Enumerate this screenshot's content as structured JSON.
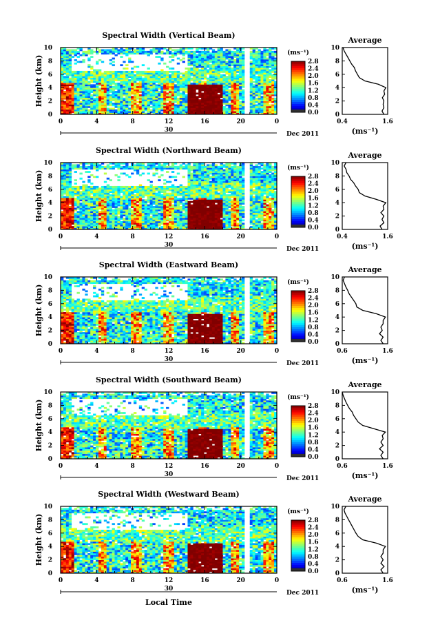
{
  "common": {
    "ylabel": "Height (km)",
    "unit": "(ms⁻¹)",
    "x_ticks": [
      "0",
      "4",
      "8",
      "12",
      "16",
      "20",
      "0"
    ],
    "y_ticks": [
      "0",
      "2",
      "4",
      "6",
      "8",
      "10"
    ],
    "day_label": "30",
    "date_label": "Dec 2011",
    "colorbar_ticks": [
      "0.0",
      "0.4",
      "0.8",
      "1.2",
      "1.6",
      "2.0",
      "2.4",
      "2.8"
    ],
    "avg_title": "Average",
    "avg_xlabel": "(ms⁻¹)",
    "xlabel": "Local Time",
    "ylim": [
      0,
      10
    ],
    "xlim": [
      0,
      24
    ],
    "colorbar_range": [
      0.0,
      2.8
    ]
  },
  "chart_data": [
    {
      "type": "heatmap",
      "title": "Spectral Width (Vertical Beam)",
      "avg_ticks": [
        "0.4",
        "1.6"
      ],
      "avg_xlim": [
        0.4,
        1.6
      ],
      "avg_profile": {
        "height_km": [
          0.0,
          0.5,
          1.0,
          1.5,
          2.0,
          2.5,
          3.0,
          3.5,
          4.0,
          4.5,
          5.0,
          5.5,
          6.0,
          6.5,
          7.0,
          7.5,
          8.0,
          8.5,
          9.0,
          9.5,
          10.0
        ],
        "width": [
          1.5,
          1.45,
          1.5,
          1.48,
          1.5,
          1.46,
          1.52,
          1.5,
          1.55,
          1.35,
          1.0,
          0.85,
          0.8,
          0.75,
          0.72,
          0.65,
          0.6,
          0.55,
          0.5,
          0.45,
          0.42
        ]
      }
    },
    {
      "type": "heatmap",
      "title": "Spectral Width (Northward Beam)",
      "avg_ticks": [
        "0.4",
        "1.6"
      ],
      "avg_xlim": [
        0.4,
        1.6
      ],
      "avg_profile": {
        "height_km": [
          0.0,
          0.5,
          1.0,
          1.5,
          2.0,
          2.5,
          3.0,
          3.5,
          4.0,
          4.5,
          5.0,
          5.5,
          6.0,
          6.5,
          7.0,
          7.5,
          8.0,
          8.5,
          9.0,
          9.5,
          10.0
        ],
        "width": [
          1.45,
          1.4,
          1.5,
          1.45,
          1.5,
          1.42,
          1.5,
          1.48,
          1.55,
          1.3,
          1.0,
          0.85,
          0.82,
          0.75,
          0.7,
          0.62,
          0.58,
          0.52,
          0.5,
          0.45,
          0.5
        ]
      }
    },
    {
      "type": "heatmap",
      "title": "Spectral Width (Eastward Beam)",
      "avg_ticks": [
        "0.6",
        "1.6"
      ],
      "avg_xlim": [
        0.6,
        1.6
      ],
      "avg_profile": {
        "height_km": [
          0.0,
          0.5,
          1.0,
          1.5,
          2.0,
          2.5,
          3.0,
          3.5,
          4.0,
          4.5,
          5.0,
          5.5,
          6.0,
          6.5,
          7.0,
          7.5,
          8.0,
          8.5,
          9.0,
          9.5,
          10.0
        ],
        "width": [
          1.5,
          1.45,
          1.5,
          1.42,
          1.48,
          1.45,
          1.5,
          1.5,
          1.55,
          1.35,
          1.05,
          0.92,
          0.9,
          0.85,
          0.8,
          0.75,
          0.72,
          0.68,
          0.65,
          0.62,
          0.65
        ]
      }
    },
    {
      "type": "heatmap",
      "title": "Spectral Width (Southward Beam)",
      "avg_ticks": [
        "0.6",
        "1.6"
      ],
      "avg_xlim": [
        0.6,
        1.6
      ],
      "avg_profile": {
        "height_km": [
          0.0,
          0.5,
          1.0,
          1.5,
          2.0,
          2.5,
          3.0,
          3.5,
          4.0,
          4.5,
          5.0,
          5.5,
          6.0,
          6.5,
          7.0,
          7.5,
          8.0,
          8.5,
          9.0,
          9.5,
          10.0
        ],
        "width": [
          1.5,
          1.45,
          1.5,
          1.42,
          1.5,
          1.45,
          1.5,
          1.48,
          1.55,
          1.3,
          1.05,
          0.95,
          0.9,
          0.85,
          0.82,
          0.76,
          0.72,
          0.68,
          0.65,
          0.62,
          0.6
        ]
      }
    },
    {
      "type": "heatmap",
      "title": "Spectral Width (Westward Beam)",
      "avg_ticks": [
        "0.6",
        "1.6"
      ],
      "avg_xlim": [
        0.6,
        1.6
      ],
      "avg_profile": {
        "height_km": [
          0.0,
          0.5,
          1.0,
          1.5,
          2.0,
          2.5,
          3.0,
          3.5,
          4.0,
          4.5,
          5.0,
          5.5,
          6.0,
          6.5,
          7.0,
          7.5,
          8.0,
          8.5,
          9.0,
          9.5,
          10.0
        ],
        "width": [
          1.5,
          1.45,
          1.52,
          1.45,
          1.5,
          1.45,
          1.5,
          1.5,
          1.55,
          1.35,
          1.05,
          0.95,
          0.9,
          0.86,
          0.82,
          0.78,
          0.74,
          0.7,
          0.66,
          0.64,
          0.68
        ]
      }
    }
  ]
}
